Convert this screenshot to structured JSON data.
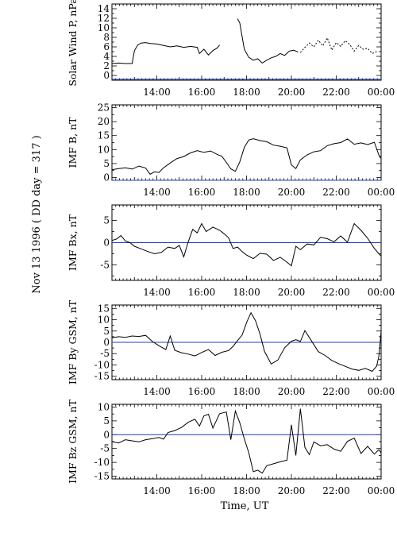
{
  "figure": {
    "side_label": "Nov 13 1996  ( DD day = 317 )",
    "xlabel": "Time, UT"
  },
  "colors": {
    "trace": "#000000",
    "zero_line": "#1a3fbf",
    "frame": "#000000"
  },
  "chart_data": [
    {
      "type": "line",
      "ylabel": "Solar Wind P, nPa",
      "ylim": [
        -1,
        15
      ],
      "yticks": [
        0,
        2,
        4,
        6,
        8,
        10,
        12,
        14
      ],
      "xlim": [
        12,
        24
      ],
      "xticks": [
        "14:00",
        "16:00",
        "18:00",
        "20:00",
        "22:00",
        "00:00"
      ],
      "zero_line": -0.8,
      "series": [
        {
          "x": [
            12.0,
            12.3,
            12.6,
            12.9,
            13.0,
            13.15,
            13.3,
            13.5,
            13.7,
            14.0,
            14.3,
            14.6,
            14.9,
            15.2,
            15.5,
            15.8,
            15.9,
            16.1,
            16.3,
            16.5,
            16.7,
            16.8
          ],
          "y": [
            2.5,
            2.6,
            2.5,
            2.5,
            5.2,
            6.4,
            6.8,
            6.9,
            6.7,
            6.6,
            6.3,
            6.0,
            6.2,
            5.9,
            6.1,
            5.9,
            4.6,
            5.5,
            4.3,
            5.2,
            5.8,
            6.4
          ]
        },
        {
          "x": [
            17.6,
            17.7,
            17.9,
            18.1,
            18.3,
            18.5,
            18.7,
            18.9,
            19.1,
            19.3,
            19.5,
            19.7,
            19.9,
            20.1,
            20.3
          ],
          "y": [
            11.9,
            11.0,
            5.5,
            3.8,
            3.2,
            3.5,
            2.6,
            3.2,
            3.7,
            4.0,
            4.6,
            4.2,
            5.1,
            5.3,
            4.9
          ]
        },
        {
          "x": [
            20.4,
            20.6,
            20.8,
            21.0,
            21.2,
            21.4,
            21.6,
            21.8,
            22.0,
            22.2,
            22.4,
            22.6,
            22.8,
            23.0,
            23.2,
            23.4,
            23.6,
            23.8
          ],
          "y": [
            4.8,
            5.9,
            6.8,
            6.0,
            7.4,
            6.2,
            7.9,
            5.3,
            6.9,
            6.1,
            7.3,
            6.5,
            5.1,
            6.3,
            5.5,
            5.7,
            4.6,
            5.0
          ]
        }
      ]
    },
    {
      "type": "line",
      "ylabel": "IMF B, nT",
      "ylim": [
        -1,
        26
      ],
      "yticks": [
        0,
        5,
        10,
        15,
        20,
        25
      ],
      "xlim": [
        12,
        24
      ],
      "xticks": [
        "14:00",
        "16:00",
        "18:00",
        "20:00",
        "22:00",
        "00:00"
      ],
      "zero_line": -1,
      "series": [
        {
          "x": [
            12.0,
            12.3,
            12.6,
            12.9,
            13.2,
            13.5,
            13.7,
            13.9,
            14.1,
            14.3,
            14.6,
            14.9,
            15.2,
            15.5,
            15.8,
            16.1,
            16.4,
            16.7,
            16.9,
            17.1,
            17.3,
            17.5,
            17.7,
            17.9,
            18.1,
            18.3,
            18.6,
            18.9,
            19.2,
            19.5,
            19.8,
            20.0,
            20.2,
            20.4,
            20.7,
            21.0,
            21.3,
            21.6,
            21.9,
            22.2,
            22.5,
            22.8,
            23.1,
            23.4,
            23.7,
            23.9,
            24.0
          ],
          "y": [
            2.8,
            3.2,
            3.5,
            3.0,
            4.1,
            3.4,
            1.2,
            2.0,
            1.8,
            3.5,
            5.2,
            6.8,
            7.5,
            8.8,
            9.6,
            9.0,
            9.5,
            8.2,
            7.6,
            5.4,
            3.1,
            2.2,
            5.6,
            10.8,
            13.4,
            13.9,
            13.2,
            12.8,
            11.6,
            11.2,
            10.6,
            4.5,
            3.2,
            6.3,
            8.1,
            9.2,
            9.6,
            11.4,
            12.1,
            12.5,
            13.8,
            11.9,
            12.4,
            11.8,
            12.6,
            8.0,
            6.8
          ]
        }
      ]
    },
    {
      "type": "line",
      "ylabel": "IMF Bx, nT",
      "ylim": [
        -8.5,
        8.5
      ],
      "yticks": [
        -5,
        0,
        5
      ],
      "xlim": [
        12,
        24
      ],
      "xticks": [
        "14:00",
        "16:00",
        "18:00",
        "20:00",
        "22:00",
        "00:00"
      ],
      "zero_line": 0,
      "series": [
        {
          "x": [
            12.0,
            12.2,
            12.4,
            12.6,
            12.8,
            13.0,
            13.3,
            13.6,
            13.9,
            14.2,
            14.5,
            14.8,
            15.0,
            15.2,
            15.4,
            15.6,
            15.8,
            16.0,
            16.2,
            16.5,
            16.8,
            17.0,
            17.2,
            17.4,
            17.6,
            17.8,
            18.0,
            18.3,
            18.6,
            18.9,
            19.2,
            19.5,
            19.8,
            20.0,
            20.2,
            20.4,
            20.7,
            21.0,
            21.3,
            21.6,
            21.9,
            22.2,
            22.5,
            22.8,
            23.1,
            23.4,
            23.7,
            23.9,
            24.0
          ],
          "y": [
            0.5,
            0.8,
            1.6,
            0.4,
            0.0,
            -0.8,
            -1.4,
            -2.0,
            -2.5,
            -2.2,
            -1.0,
            -1.3,
            -0.6,
            -3.2,
            0.2,
            3.0,
            2.2,
            4.3,
            2.5,
            3.5,
            2.8,
            2.0,
            1.1,
            -1.3,
            -1.0,
            -2.0,
            -2.8,
            -3.6,
            -2.4,
            -2.6,
            -4.0,
            -3.3,
            -4.4,
            -5.2,
            -0.8,
            -1.6,
            -0.3,
            -0.5,
            1.2,
            0.9,
            0.2,
            1.5,
            0.1,
            4.3,
            2.8,
            1.0,
            -1.3,
            -2.5,
            -3.0
          ]
        }
      ]
    },
    {
      "type": "line",
      "ylabel": "IMF By GSM, nT",
      "ylim": [
        -16.5,
        16.5
      ],
      "yticks": [
        -15,
        -10,
        -5,
        0,
        5,
        10,
        15
      ],
      "xlim": [
        12,
        24
      ],
      "xticks": [
        "14:00",
        "16:00",
        "18:00",
        "20:00",
        "22:00",
        "00:00"
      ],
      "zero_line": 0,
      "series": [
        {
          "x": [
            12.0,
            12.3,
            12.6,
            12.9,
            13.2,
            13.5,
            13.8,
            14.1,
            14.4,
            14.6,
            14.8,
            15.1,
            15.4,
            15.7,
            16.0,
            16.3,
            16.6,
            16.9,
            17.2,
            17.4,
            17.6,
            17.8,
            18.0,
            18.2,
            18.4,
            18.6,
            18.8,
            19.1,
            19.4,
            19.7,
            20.0,
            20.2,
            20.4,
            20.6,
            20.9,
            21.2,
            21.5,
            21.8,
            22.1,
            22.4,
            22.7,
            23.0,
            23.3,
            23.6,
            23.8,
            23.9,
            24.0
          ],
          "y": [
            2.0,
            2.5,
            2.2,
            2.8,
            2.6,
            3.1,
            0.4,
            -1.5,
            -3.2,
            2.8,
            -3.5,
            -4.6,
            -5.2,
            -6.0,
            -4.5,
            -3.2,
            -5.8,
            -4.4,
            -3.6,
            -1.8,
            0.8,
            3.2,
            8.7,
            13.1,
            9.6,
            3.6,
            -4.0,
            -9.6,
            -7.8,
            -2.4,
            0.5,
            1.2,
            0.4,
            5.2,
            0.6,
            -4.1,
            -5.8,
            -8.0,
            -9.4,
            -10.6,
            -11.8,
            -12.4,
            -11.5,
            -12.8,
            -10.5,
            -6.0,
            4.8
          ]
        }
      ]
    },
    {
      "type": "line",
      "ylabel": "IMF Bz GSM, nT",
      "ylim": [
        -16,
        11
      ],
      "yticks": [
        -15,
        -10,
        -5,
        0,
        5,
        10
      ],
      "xlim": [
        12,
        24
      ],
      "xticks": [
        "14:00",
        "16:00",
        "18:00",
        "20:00",
        "22:00",
        "00:00"
      ],
      "zero_line": 0,
      "series": [
        {
          "x": [
            12.0,
            12.3,
            12.6,
            12.9,
            13.2,
            13.5,
            13.8,
            14.1,
            14.3,
            14.5,
            14.8,
            15.1,
            15.4,
            15.7,
            15.9,
            16.1,
            16.3,
            16.5,
            16.8,
            17.1,
            17.3,
            17.5,
            17.7,
            17.9,
            18.1,
            18.3,
            18.5,
            18.7,
            18.9,
            19.2,
            19.5,
            19.8,
            20.0,
            20.2,
            20.4,
            20.6,
            20.8,
            21.0,
            21.3,
            21.6,
            21.9,
            22.2,
            22.5,
            22.8,
            23.1,
            23.4,
            23.7,
            23.9,
            24.0
          ],
          "y": [
            -2.5,
            -3.0,
            -1.8,
            -2.2,
            -2.6,
            -1.8,
            -1.4,
            -1.0,
            -1.6,
            0.8,
            1.5,
            2.6,
            4.5,
            5.6,
            3.1,
            6.8,
            7.4,
            2.4,
            7.6,
            8.2,
            -1.8,
            8.6,
            4.3,
            -1.5,
            -6.5,
            -13.4,
            -12.8,
            -13.9,
            -11.2,
            -10.5,
            -9.8,
            -9.2,
            3.6,
            -7.5,
            9.4,
            -4.6,
            -7.2,
            -2.6,
            -4.0,
            -3.6,
            -5.2,
            -6.0,
            -2.4,
            -1.2,
            -6.8,
            -4.2,
            -7.0,
            -5.4,
            -6.6
          ]
        }
      ]
    }
  ]
}
